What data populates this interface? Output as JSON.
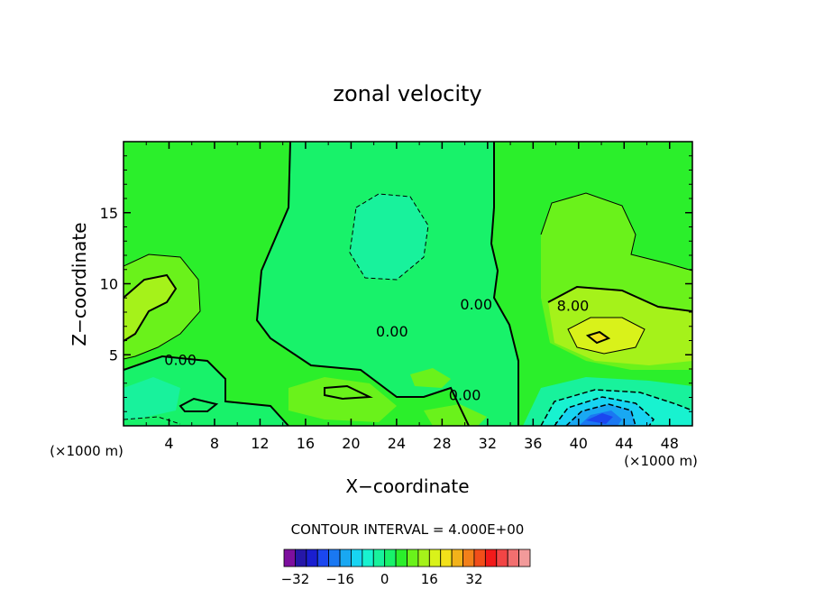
{
  "chart_data": {
    "type": "contour",
    "title": "zonal velocity",
    "xlabel": "X−coordinate",
    "ylabel": "Z−coordinate",
    "x_units_left": "(×1000 m)",
    "x_units_right": "(×1000 m)",
    "xlim": [
      0,
      50
    ],
    "ylim": [
      0,
      20
    ],
    "x_ticks": [
      4,
      8,
      12,
      16,
      20,
      24,
      28,
      32,
      36,
      40,
      44,
      48
    ],
    "y_ticks": [
      5,
      10,
      15
    ],
    "contour_interval_text": "CONTOUR INTERVAL = 4.000E+00",
    "contour_labels": [
      {
        "text": "0.00",
        "x": 5.0,
        "y": 4.3
      },
      {
        "text": "0.00",
        "x": 23.6,
        "y": 6.3
      },
      {
        "text": "0.00",
        "x": 31.0,
        "y": 8.2
      },
      {
        "text": "0.00",
        "x": 30.0,
        "y": 1.8
      },
      {
        "text": "8.00",
        "x": 39.5,
        "y": 8.1
      }
    ],
    "colorbar": {
      "tick_labels": [
        "−32",
        "−16",
        "0",
        "16",
        "32"
      ],
      "colors": [
        "#7d0f9e",
        "#2617a8",
        "#1a1ed0",
        "#1b47ef",
        "#1a78f2",
        "#19a8f2",
        "#18d4f2",
        "#18f2d0",
        "#18f29c",
        "#18f26a",
        "#2bef2b",
        "#6af21b",
        "#a5f21a",
        "#d9f21a",
        "#f2e11a",
        "#f2b21a",
        "#f2801a",
        "#f24e1a",
        "#f21a1a",
        "#f24545",
        "#f26f6f",
        "#f29a9a"
      ]
    },
    "grid": false,
    "legend": "none"
  }
}
